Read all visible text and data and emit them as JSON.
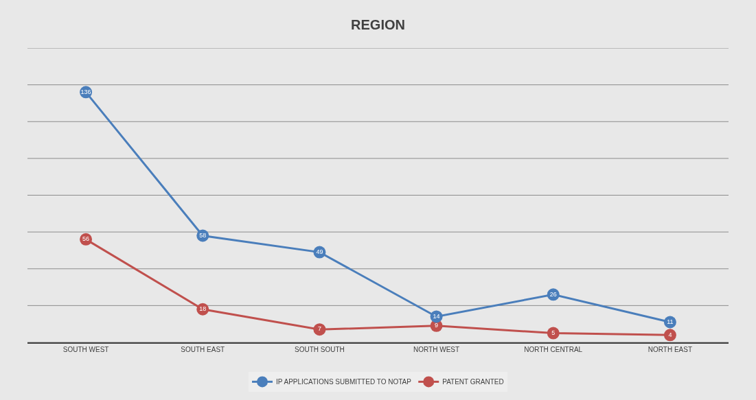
{
  "chart_data": {
    "type": "line",
    "title": "REGION",
    "categories": [
      "SOUTH WEST",
      "SOUTH EAST",
      "SOUTH SOUTH",
      "NORTH WEST",
      "NORTH CENTRAL",
      "NORTH EAST"
    ],
    "series": [
      {
        "name": "IP APPLICATIONS SUBMITTED TO NOTAP",
        "color": "#4a7ebb",
        "values": [
          136,
          58,
          49,
          14,
          26,
          11
        ]
      },
      {
        "name": "PATENT GRANTED",
        "color": "#c0504d",
        "values": [
          56,
          18,
          7,
          9,
          5,
          4
        ]
      }
    ],
    "ylim": [
      0,
      160
    ],
    "yticks": [
      {
        "value": 0,
        "label": null
      },
      {
        "value": 20,
        "label": null
      },
      {
        "value": 40,
        "label": null
      },
      {
        "value": 60,
        "label": null
      },
      {
        "value": 80,
        "label": null
      },
      {
        "value": 100,
        "label": null
      },
      {
        "value": 120,
        "label": null
      },
      {
        "value": 140,
        "label": null
      },
      {
        "value": 160,
        "label": null
      }
    ],
    "tick_labels": "x",
    "grid": "y",
    "legend": "bottom",
    "marker": "circle",
    "line_style": "solid",
    "data_labels": true
  }
}
